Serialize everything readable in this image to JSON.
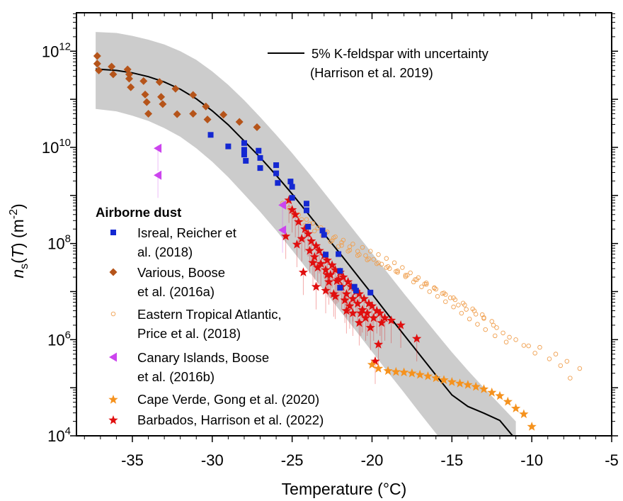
{
  "chart_data": {
    "type": "scatter",
    "xlabel": "Temperature (°C)",
    "ylabel_symbol": "n",
    "ylabel_sub": "s",
    "ylabel_var": "T",
    "ylabel_unit": "(m",
    "ylabel_unit_exp": "-2",
    "ylabel_close": ")",
    "xlim": [
      -38.5,
      -5
    ],
    "ylim_log10": [
      4,
      12.8
    ],
    "y_scale": "log",
    "x_ticks": [
      -35,
      -30,
      -25,
      -20,
      -15,
      -10,
      -5
    ],
    "x_tick_labels": [
      "-35",
      "-30",
      "-25",
      "-20",
      "-15",
      "-10",
      "-5"
    ],
    "y_ticks_log10": [
      4,
      6,
      8,
      10,
      12
    ],
    "y_tick_base": "10",
    "y_tick_exponents": [
      "4",
      "6",
      "8",
      "10",
      "12"
    ],
    "grid": false,
    "legend_title": "Airborne dust",
    "curve": {
      "label_line1": "5% K-feldspar with uncertainty",
      "label_line2": "(Harrison et al. 2019)",
      "color": "#000000",
      "band_color": "#cccccc",
      "x": [
        -37.3,
        -36,
        -35,
        -34,
        -33,
        -32,
        -31,
        -30,
        -29,
        -28,
        -27,
        -26,
        -25,
        -24,
        -23,
        -22,
        -21,
        -20,
        -19,
        -18,
        -17,
        -16,
        -15,
        -14,
        -13,
        -12,
        -11
      ],
      "log10_y": [
        11.63,
        11.6,
        11.55,
        11.47,
        11.36,
        11.21,
        11.01,
        10.76,
        10.47,
        10.13,
        9.79,
        9.42,
        9.03,
        8.62,
        8.2,
        7.79,
        7.37,
        6.95,
        6.52,
        6.1,
        5.68,
        5.26,
        4.85,
        4.61,
        4.47,
        4.32,
        3.92
      ],
      "band_low_log10": [
        10.8,
        10.75,
        10.66,
        10.55,
        10.4,
        10.22,
        9.98,
        9.7,
        9.38,
        9.02,
        8.66,
        8.27,
        7.86,
        7.44,
        7.02,
        6.6,
        6.18,
        5.75,
        5.32,
        4.9,
        4.47,
        4.05,
        3.65,
        3.3,
        3.0,
        2.7,
        2.4
      ],
      "band_high_log10": [
        12.4,
        12.38,
        12.32,
        12.24,
        12.14,
        12.0,
        11.82,
        11.58,
        11.3,
        10.98,
        10.63,
        10.26,
        9.88,
        9.48,
        9.06,
        8.64,
        8.22,
        7.8,
        7.38,
        6.96,
        6.55,
        6.14,
        5.74,
        5.36,
        5.0,
        4.65,
        4.3
      ]
    },
    "series": [
      {
        "name_line1": "Isreal, Reicher et",
        "name_line2": "al. (2018)",
        "marker": "square",
        "color": "#1428d2",
        "x": [
          -30.1,
          -29,
          -28,
          -28,
          -28,
          -27.9,
          -27.1,
          -27,
          -27,
          -26,
          -26,
          -25.9,
          -25.1,
          -25,
          -25,
          -24.1,
          -24.1,
          -24,
          -23.1,
          -23,
          -22.9,
          -22.1,
          -22,
          -22,
          -21.1,
          -21,
          -20.1
        ],
        "log10_y": [
          10.26,
          10.02,
          10.09,
          9.95,
          9.85,
          9.72,
          9.93,
          9.78,
          9.57,
          9.63,
          9.46,
          9.26,
          9.29,
          9.18,
          8.95,
          8.83,
          8.69,
          8.35,
          8.27,
          8.18,
          7.77,
          7.78,
          7.43,
          7.08,
          7.1,
          7.02,
          6.98
        ]
      },
      {
        "name_line1": "Various, Boose",
        "name_line2": "et al. (2016a)",
        "marker": "diamond",
        "color": "#b5541a",
        "x": [
          -37.2,
          -37.2,
          -37.1,
          -36.3,
          -36.2,
          -35.3,
          -35.2,
          -35.2,
          -35.1,
          -34.3,
          -34.2,
          -34.1,
          -34,
          -33.3,
          -33.2,
          -33.1,
          -32.3,
          -32.2,
          -31.2,
          -31.2,
          -30.4,
          -30.3,
          -29.3,
          -28.3,
          -27.2
        ],
        "log10_y": [
          11.9,
          11.74,
          11.6,
          11.68,
          11.52,
          11.62,
          11.52,
          11.43,
          11.25,
          11.38,
          11.1,
          10.94,
          10.7,
          11.36,
          11.05,
          10.9,
          11.22,
          10.69,
          11.09,
          10.7,
          10.85,
          10.58,
          10.68,
          10.53,
          10.42
        ]
      },
      {
        "name_line1": "Eastern Tropical Atlantic,",
        "name_line2": "Price et al. (2018)",
        "marker": "open-circle",
        "color": "#f0a050",
        "x": [
          -25.6,
          -25.2,
          -24.6,
          -24.1,
          -23.7,
          -23.2,
          -22.8,
          -22.3,
          -21.8,
          -21.2,
          -20.6,
          -20.1,
          -19.6,
          -19.1,
          -18.6,
          -18.1,
          -17.6,
          -17.1,
          -16.6,
          -16.1,
          -15.6,
          -15.1,
          -14.6,
          -14.1,
          -13.5,
          -13,
          -12.4,
          -11.8,
          -11,
          -10.2,
          -9.5,
          -8.5,
          -7.8,
          -7,
          -24.9,
          -24.4,
          -23.9,
          -23.4,
          -22.9,
          -22.4,
          -21.9,
          -21.4,
          -20.9,
          -20.4,
          -19.9,
          -19.4,
          -18.9,
          -18.4,
          -17.9,
          -17.4,
          -16.9,
          -16.4,
          -15.9,
          -15.4,
          -14.9,
          -14.4,
          -13.9,
          -13.4,
          -12.9,
          -12.3,
          -11.6,
          -24.2,
          -23.6,
          -23.1,
          -22.5,
          -21.9,
          -21.4,
          -20.8,
          -20.2,
          -19.6,
          -19,
          -18.4,
          -17.8,
          -17.2,
          -16.6,
          -16,
          -15.4,
          -14.8,
          -14.2,
          -13.6,
          -13,
          -12.2,
          -22.6,
          -22.1,
          -21.5,
          -20.9,
          -20.3,
          -19.7,
          -19.1,
          -18.5,
          -17.9,
          -17.3,
          -16.7,
          -16.1,
          -15.5,
          -14.9,
          -14.3,
          -13.7,
          -13.1,
          -12.5,
          -11.4,
          -10.5,
          -9.8,
          -8.9,
          -8.2,
          -7.6
        ],
        "log10_y": [
          8.84,
          8.74,
          8.6,
          8.5,
          8.42,
          8.33,
          8.24,
          8.14,
          8.07,
          7.99,
          7.92,
          7.84,
          7.77,
          7.69,
          7.6,
          7.5,
          7.39,
          7.29,
          7.18,
          7.08,
          6.96,
          6.87,
          6.72,
          6.63,
          6.53,
          6.44,
          6.3,
          6.14,
          6.0,
          5.87,
          5.84,
          5.7,
          5.55,
          5.4,
          8.6,
          8.5,
          8.41,
          8.32,
          8.22,
          8.12,
          8.02,
          7.93,
          7.84,
          7.75,
          7.67,
          7.57,
          7.48,
          7.4,
          7.31,
          7.2,
          7.1,
          7.0,
          6.9,
          6.79,
          6.68,
          6.55,
          6.43,
          6.32,
          6.21,
          6.08,
          5.95,
          8.38,
          8.26,
          8.16,
          8.06,
          7.96,
          7.86,
          7.77,
          7.68,
          7.6,
          7.52,
          7.43,
          7.34,
          7.25,
          7.15,
          7.05,
          6.94,
          6.83,
          6.72,
          6.6,
          6.46,
          6.25,
          8.04,
          7.94,
          7.84,
          7.75,
          7.66,
          7.58,
          7.5,
          7.42,
          7.34,
          7.25,
          7.16,
          7.07,
          6.97,
          6.87,
          6.76,
          6.64,
          6.52,
          6.38,
          6.05,
          5.88,
          5.72,
          5.6,
          5.46,
          5.2
        ]
      },
      {
        "name_line1": "Canary Islands, Boose",
        "name_line2": "et al. (2016b)",
        "marker": "left-triangle",
        "color": "#cc44ee",
        "x": [
          -33.4,
          -33.4,
          -25.6,
          -25.6
        ],
        "log10_y": [
          9.98,
          9.42,
          8.8,
          8.28
        ]
      },
      {
        "name_line1": "Cape Verde, Gong et al. (2020)",
        "name_line2": "",
        "marker": "star",
        "color": "#f5921e",
        "x": [
          -20,
          -19.6,
          -19,
          -18.5,
          -18,
          -17.5,
          -17,
          -16.5,
          -16,
          -15.5,
          -15,
          -14.5,
          -14,
          -13.5,
          -13,
          -12.5,
          -12,
          -11.5,
          -11,
          -10.5,
          -10
        ],
        "log10_y": [
          5.48,
          5.4,
          5.35,
          5.33,
          5.32,
          5.3,
          5.27,
          5.24,
          5.2,
          5.16,
          5.12,
          5.09,
          5.06,
          5.02,
          4.97,
          4.9,
          4.83,
          4.71,
          4.57,
          4.45,
          4.19
        ]
      },
      {
        "name_line1": "Barbados, Harrison et al. (2022)",
        "name_line2": "",
        "marker": "star",
        "color": "#e00f0f",
        "x": [
          -25.2,
          -25,
          -24.8,
          -24.6,
          -24.2,
          -24,
          -23.8,
          -23.5,
          -23.3,
          -23,
          -22.8,
          -22.5,
          -22.3,
          -22,
          -21.8,
          -21.5,
          -21.3,
          -21,
          -20.8,
          -20.5,
          -20.2,
          -20,
          -19.7,
          -19.5,
          -19.2,
          -18.8,
          -18.2,
          -17.2,
          -23.9,
          -23.6,
          -23.2,
          -22.9,
          -22.6,
          -22.2,
          -21.9,
          -21.6,
          -21.2,
          -20.9,
          -20.6,
          -20.3,
          -19.9,
          -19.4,
          -24.4,
          -23.4,
          -22.7,
          -22.4,
          -21.7,
          -21.4,
          -20.7,
          -20.4,
          -21.6,
          -20.8,
          -19.8,
          -25.4,
          -24.7,
          -23.7,
          -22.8,
          -22.1,
          -24.3,
          -23.5,
          -22.9,
          -22.3,
          -21.2,
          -20.1,
          -19.6
        ],
        "log10_y": [
          8.9,
          8.7,
          8.6,
          8.45,
          8.3,
          8.2,
          8.05,
          7.95,
          7.85,
          7.75,
          7.65,
          7.55,
          7.45,
          7.4,
          7.3,
          7.2,
          7.1,
          7.0,
          6.95,
          6.85,
          6.75,
          6.7,
          6.6,
          6.55,
          6.45,
          6.4,
          6.3,
          6.02,
          7.85,
          7.72,
          7.58,
          7.45,
          7.35,
          7.22,
          7.1,
          6.95,
          6.85,
          6.75,
          6.62,
          6.55,
          6.45,
          6.35,
          8.1,
          7.5,
          7.2,
          6.95,
          6.82,
          6.7,
          6.55,
          6.45,
          6.6,
          6.35,
          5.55,
          8.15,
          7.98,
          7.6,
          7.35,
          7.25,
          7.4,
          7.1,
          7.02,
          6.9,
          6.55,
          6.25,
          5.9
        ]
      }
    ]
  }
}
